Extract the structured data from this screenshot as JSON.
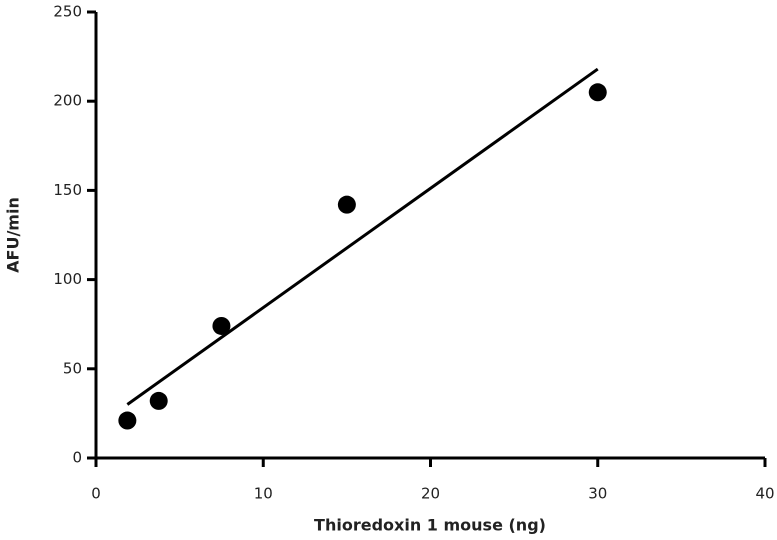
{
  "chart_data": {
    "type": "scatter",
    "x_label": "Thioredoxin 1 mouse (ng)",
    "y_label": "AFU/min",
    "x": [
      1.875,
      3.75,
      7.5,
      15,
      30
    ],
    "values": [
      21,
      32,
      74,
      142,
      205
    ],
    "color": "#000000",
    "fit_line": {
      "x": [
        1.875,
        30
      ],
      "y": [
        30,
        218
      ]
    },
    "xlim": [
      0,
      40
    ],
    "xticks": [
      0,
      10,
      20,
      30,
      40
    ],
    "ylim": [
      0,
      250
    ],
    "yticks": [
      0,
      50,
      100,
      150,
      200,
      250
    ]
  }
}
